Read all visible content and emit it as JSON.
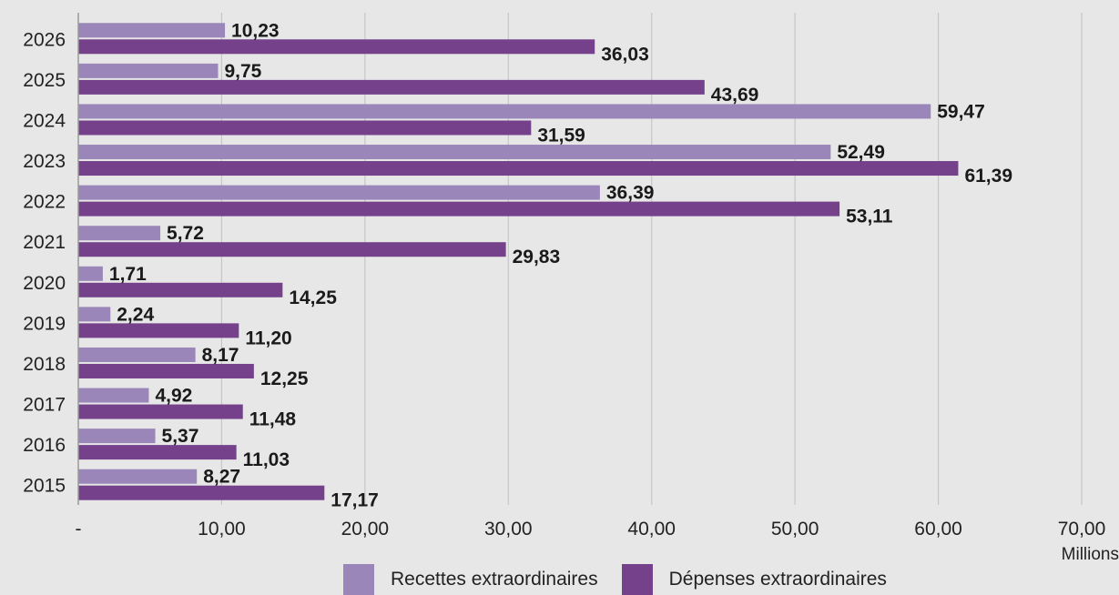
{
  "chart_data": {
    "type": "bar",
    "orientation": "horizontal",
    "categories": [
      "2026",
      "2025",
      "2024",
      "2023",
      "2022",
      "2021",
      "2020",
      "2019",
      "2018",
      "2017",
      "2016",
      "2015"
    ],
    "series": [
      {
        "name": "Recettes extraordinaires",
        "color": "#9a86b8",
        "values": [
          10.23,
          9.75,
          59.47,
          52.49,
          36.39,
          5.72,
          1.71,
          2.24,
          8.17,
          4.92,
          5.37,
          8.27
        ],
        "labels": [
          "10,23",
          "9,75",
          "59,47",
          "52,49",
          "36,39",
          "5,72",
          "1,71",
          "2,24",
          "8,17",
          "4,92",
          "5,37",
          "8,27"
        ]
      },
      {
        "name": "Dépenses extraordinaires",
        "color": "#74418a",
        "values": [
          36.03,
          43.69,
          31.59,
          61.39,
          53.11,
          29.83,
          14.25,
          11.2,
          12.25,
          11.48,
          11.03,
          17.17
        ],
        "labels": [
          "36,03",
          "43,69",
          "31,59",
          "61,39",
          "53,11",
          "29,83",
          "14,25",
          "11,20",
          "12,25",
          "11,48",
          "11,03",
          "17,17"
        ]
      }
    ],
    "xlim": [
      0,
      70
    ],
    "x_ticks": [
      0,
      10,
      20,
      30,
      40,
      50,
      60,
      70
    ],
    "x_tick_labels": [
      "-",
      "10,00",
      "20,00",
      "30,00",
      "40,00",
      "50,00",
      "60,00",
      "70,00"
    ],
    "x_unit_label": "Millions",
    "grid": true,
    "legend_position": "bottom",
    "title": "",
    "xlabel": "",
    "ylabel": ""
  }
}
